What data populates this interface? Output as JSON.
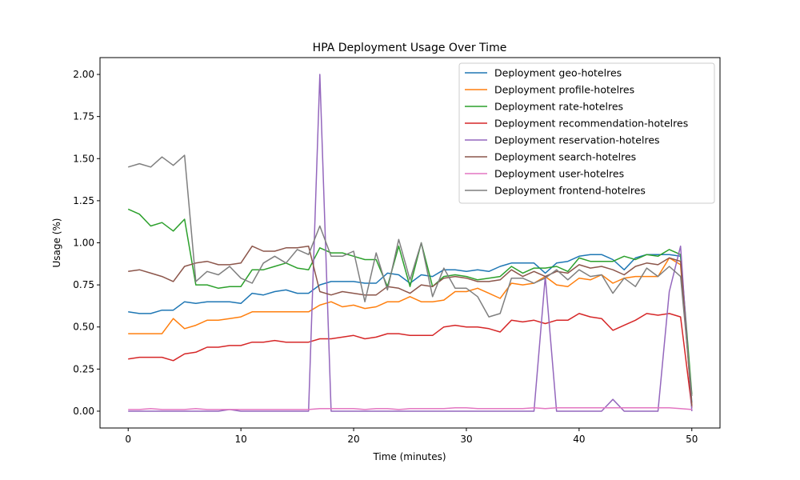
{
  "chart_data": {
    "type": "line",
    "title": "HPA Deployment Usage Over Time",
    "xlabel": "Time (minutes)",
    "ylabel": "Usage (%)",
    "xlim": [
      -2.5,
      52.5
    ],
    "ylim": [
      -0.1,
      2.1
    ],
    "xticks": [
      0,
      10,
      20,
      30,
      40,
      50
    ],
    "yticks": [
      0.0,
      0.25,
      0.5,
      0.75,
      1.0,
      1.25,
      1.5,
      1.75,
      2.0
    ],
    "ytick_labels": [
      "0.00",
      "0.25",
      "0.50",
      "0.75",
      "1.00",
      "1.25",
      "1.50",
      "1.75",
      "2.00"
    ],
    "grid": false,
    "legend_position": "top-right",
    "x": [
      0,
      1,
      2,
      3,
      4,
      5,
      6,
      7,
      8,
      9,
      10,
      11,
      12,
      13,
      14,
      15,
      16,
      17,
      18,
      19,
      20,
      21,
      22,
      23,
      24,
      25,
      26,
      27,
      28,
      29,
      30,
      31,
      32,
      33,
      34,
      35,
      36,
      37,
      38,
      39,
      40,
      41,
      42,
      43,
      44,
      45,
      46,
      47,
      48,
      49,
      50
    ],
    "series": [
      {
        "name": "Deployment geo-hotelres",
        "color": "#1f77b4",
        "values": [
          0.59,
          0.58,
          0.58,
          0.6,
          0.6,
          0.65,
          0.64,
          0.65,
          0.65,
          0.65,
          0.64,
          0.7,
          0.69,
          0.71,
          0.72,
          0.7,
          0.7,
          0.75,
          0.77,
          0.77,
          0.77,
          0.76,
          0.76,
          0.82,
          0.81,
          0.76,
          0.81,
          0.8,
          0.84,
          0.84,
          0.83,
          0.84,
          0.83,
          0.86,
          0.88,
          0.88,
          0.88,
          0.82,
          0.88,
          0.89,
          0.92,
          0.93,
          0.93,
          0.9,
          0.84,
          0.91,
          0.93,
          0.93,
          0.93,
          0.92,
          0.05
        ]
      },
      {
        "name": "Deployment profile-hotelres",
        "color": "#ff7f0e",
        "values": [
          0.46,
          0.46,
          0.46,
          0.46,
          0.55,
          0.49,
          0.51,
          0.54,
          0.54,
          0.55,
          0.56,
          0.59,
          0.59,
          0.59,
          0.59,
          0.59,
          0.59,
          0.63,
          0.65,
          0.62,
          0.63,
          0.61,
          0.62,
          0.65,
          0.65,
          0.68,
          0.65,
          0.65,
          0.66,
          0.71,
          0.71,
          0.73,
          0.7,
          0.67,
          0.76,
          0.75,
          0.76,
          0.8,
          0.75,
          0.74,
          0.79,
          0.78,
          0.81,
          0.76,
          0.79,
          0.8,
          0.8,
          0.8,
          0.91,
          0.87,
          0.03
        ]
      },
      {
        "name": "Deployment rate-hotelres",
        "color": "#2ca02c",
        "values": [
          1.2,
          1.17,
          1.1,
          1.12,
          1.07,
          1.14,
          0.75,
          0.75,
          0.73,
          0.74,
          0.74,
          0.84,
          0.84,
          0.86,
          0.88,
          0.85,
          0.84,
          0.97,
          0.94,
          0.94,
          0.92,
          0.9,
          0.9,
          0.74,
          0.98,
          0.74,
          1.0,
          0.74,
          0.8,
          0.81,
          0.8,
          0.78,
          0.79,
          0.8,
          0.86,
          0.82,
          0.85,
          0.85,
          0.86,
          0.83,
          0.91,
          0.89,
          0.89,
          0.89,
          0.92,
          0.9,
          0.93,
          0.92,
          0.96,
          0.93,
          0.1
        ]
      },
      {
        "name": "Deployment recommendation-hotelres",
        "color": "#d62728",
        "values": [
          0.31,
          0.32,
          0.32,
          0.32,
          0.3,
          0.34,
          0.35,
          0.38,
          0.38,
          0.39,
          0.39,
          0.41,
          0.41,
          0.42,
          0.41,
          0.41,
          0.41,
          0.43,
          0.43,
          0.44,
          0.45,
          0.43,
          0.44,
          0.46,
          0.46,
          0.45,
          0.45,
          0.45,
          0.5,
          0.51,
          0.5,
          0.5,
          0.49,
          0.47,
          0.54,
          0.53,
          0.54,
          0.52,
          0.54,
          0.54,
          0.58,
          0.56,
          0.55,
          0.48,
          0.51,
          0.54,
          0.58,
          0.57,
          0.58,
          0.56,
          0.02
        ]
      },
      {
        "name": "Deployment reservation-hotelres",
        "color": "#9467bd",
        "values": [
          0.0,
          0.0,
          0.0,
          0.0,
          0.0,
          0.0,
          0.0,
          0.0,
          0.0,
          0.01,
          0.0,
          0.0,
          0.0,
          0.0,
          0.0,
          0.0,
          0.0,
          2.0,
          0.0,
          0.0,
          0.0,
          0.0,
          0.0,
          0.0,
          0.0,
          0.0,
          0.0,
          0.0,
          0.0,
          0.0,
          0.0,
          0.0,
          0.0,
          0.0,
          0.0,
          0.0,
          0.0,
          0.8,
          0.0,
          0.0,
          0.0,
          0.0,
          0.0,
          0.07,
          0.0,
          0.0,
          0.0,
          0.0,
          0.71,
          0.98,
          0.0
        ]
      },
      {
        "name": "Deployment search-hotelres",
        "color": "#8c564b",
        "values": [
          0.83,
          0.84,
          0.82,
          0.8,
          0.77,
          0.86,
          0.88,
          0.89,
          0.87,
          0.87,
          0.88,
          0.98,
          0.95,
          0.95,
          0.97,
          0.97,
          0.98,
          0.71,
          0.69,
          0.71,
          0.7,
          0.69,
          0.69,
          0.74,
          0.73,
          0.7,
          0.75,
          0.74,
          0.79,
          0.8,
          0.79,
          0.77,
          0.77,
          0.78,
          0.84,
          0.8,
          0.83,
          0.8,
          0.83,
          0.82,
          0.87,
          0.85,
          0.86,
          0.84,
          0.81,
          0.86,
          0.88,
          0.87,
          0.91,
          0.89,
          0.03
        ]
      },
      {
        "name": "Deployment user-hotelres",
        "color": "#e377c2",
        "values": [
          0.01,
          0.01,
          0.015,
          0.01,
          0.01,
          0.01,
          0.015,
          0.01,
          0.01,
          0.01,
          0.01,
          0.01,
          0.01,
          0.01,
          0.01,
          0.01,
          0.01,
          0.015,
          0.015,
          0.015,
          0.015,
          0.01,
          0.015,
          0.015,
          0.01,
          0.015,
          0.015,
          0.015,
          0.015,
          0.02,
          0.02,
          0.015,
          0.015,
          0.015,
          0.015,
          0.015,
          0.02,
          0.015,
          0.02,
          0.02,
          0.02,
          0.02,
          0.02,
          0.02,
          0.02,
          0.02,
          0.02,
          0.02,
          0.02,
          0.015,
          0.01
        ]
      },
      {
        "name": "Deployment frontend-hotelres",
        "color": "#7f7f7f",
        "values": [
          1.45,
          1.47,
          1.45,
          1.51,
          1.46,
          1.52,
          0.77,
          0.83,
          0.81,
          0.86,
          0.79,
          0.76,
          0.88,
          0.92,
          0.88,
          0.96,
          0.93,
          1.1,
          0.92,
          0.92,
          0.95,
          0.65,
          0.94,
          0.72,
          1.02,
          0.78,
          1.0,
          0.68,
          0.85,
          0.73,
          0.73,
          0.68,
          0.56,
          0.58,
          0.79,
          0.79,
          0.76,
          0.79,
          0.84,
          0.78,
          0.84,
          0.8,
          0.81,
          0.7,
          0.79,
          0.74,
          0.85,
          0.8,
          0.86,
          0.8,
          0.09
        ]
      }
    ]
  }
}
